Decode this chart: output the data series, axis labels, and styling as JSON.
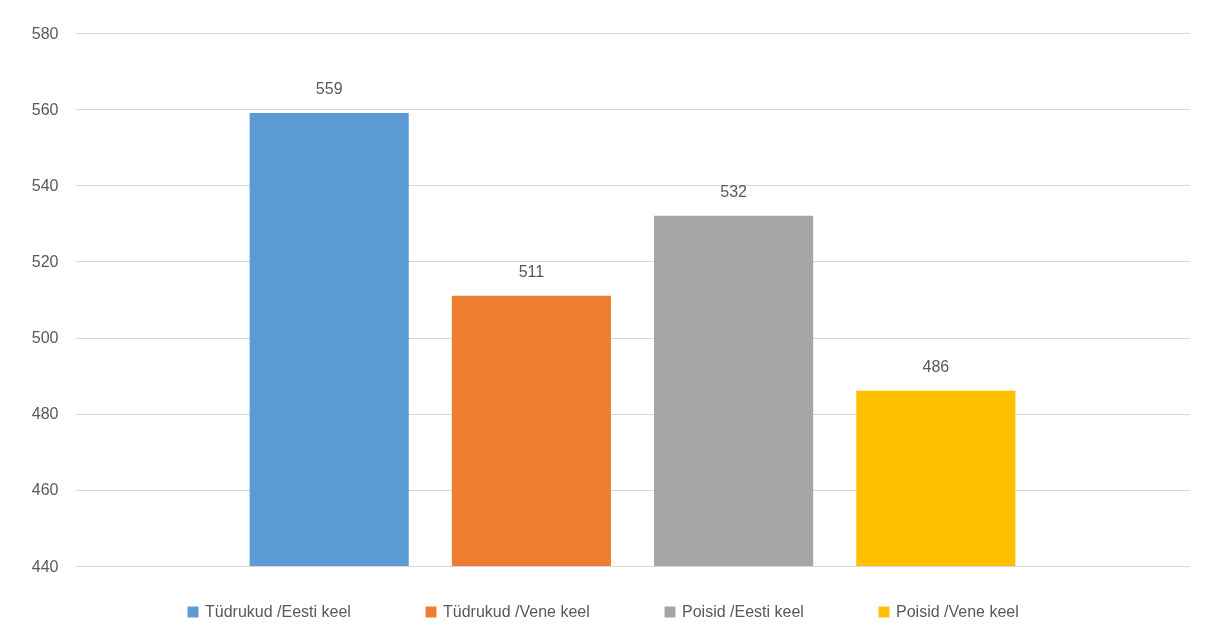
{
  "chart_data": {
    "type": "bar",
    "categories": [
      null
    ],
    "series": [
      {
        "name": "Tüdrukud /Eesti keel",
        "color": "#5b9bd5",
        "values": [
          559
        ]
      },
      {
        "name": "Tüdrukud /Vene keel",
        "color": "#ed7d31",
        "values": [
          511
        ]
      },
      {
        "name": "Poisid /Eesti keel",
        "color": "#a5a5a5",
        "values": [
          532
        ]
      },
      {
        "name": "Poisid /Vene keel",
        "color": "#ffc000",
        "values": [
          486
        ]
      }
    ],
    "ylim": [
      440,
      580
    ],
    "yticks": [
      440,
      460,
      480,
      500,
      520,
      540,
      560,
      580
    ],
    "grid": "y",
    "legend": "bottom",
    "data_labels": true
  }
}
